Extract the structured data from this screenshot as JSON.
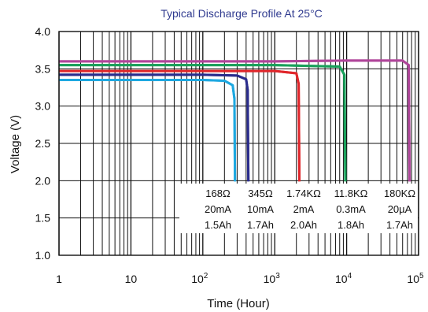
{
  "chart_data": {
    "type": "line",
    "title": "Typical Discharge Profile At 25°C",
    "xlabel": "Time (Hour)",
    "ylabel": "Voltage (V)",
    "x_scale": "log",
    "xlim": [
      1,
      100000
    ],
    "ylim": [
      1.0,
      4.0
    ],
    "x_ticks": [
      {
        "value": 1,
        "base": "1",
        "exp": ""
      },
      {
        "value": 10,
        "base": "10",
        "exp": ""
      },
      {
        "value": 100,
        "base": "10",
        "exp": "2"
      },
      {
        "value": 1000,
        "base": "10",
        "exp": "3"
      },
      {
        "value": 10000,
        "base": "10",
        "exp": "4"
      },
      {
        "value": 100000,
        "base": "10",
        "exp": "5"
      }
    ],
    "y_ticks": [
      "1.0",
      "1.5",
      "2.0",
      "2.5",
      "3.0",
      "3.5",
      "4.0"
    ],
    "grid": true,
    "series": [
      {
        "color": "#1ea8e0",
        "x": [
          1,
          10,
          100,
          200,
          260,
          275,
          280
        ],
        "y": [
          3.35,
          3.35,
          3.35,
          3.34,
          3.28,
          3.1,
          1.99
        ]
      },
      {
        "color": "#2a2c8c",
        "x": [
          1,
          10,
          100,
          300,
          400,
          420,
          430
        ],
        "y": [
          3.42,
          3.42,
          3.42,
          3.41,
          3.36,
          3.22,
          1.99
        ]
      },
      {
        "color": "#e0262b",
        "x": [
          1,
          10,
          100,
          1000,
          2000,
          2150,
          2200
        ],
        "y": [
          3.47,
          3.47,
          3.47,
          3.47,
          3.44,
          3.3,
          1.99
        ]
      },
      {
        "color": "#19a05a",
        "x": [
          1,
          10,
          100,
          1000,
          8000,
          9300,
          9600
        ],
        "y": [
          3.55,
          3.55,
          3.55,
          3.55,
          3.53,
          3.42,
          1.99
        ]
      },
      {
        "color": "#b0459a",
        "x": [
          1,
          10,
          100,
          1000,
          10000,
          60000,
          73000,
          75000
        ],
        "y": [
          3.6,
          3.6,
          3.6,
          3.6,
          3.61,
          3.61,
          3.55,
          1.99
        ]
      }
    ],
    "annotations": [
      {
        "lines": [
          "168Ω",
          "20mA",
          "1.5Ah"
        ]
      },
      {
        "lines": [
          "345Ω",
          "10mA",
          "1.7Ah"
        ]
      },
      {
        "lines": [
          "1.74KΩ",
          "2mA",
          "2.0Ah"
        ]
      },
      {
        "lines": [
          "11.8KΩ",
          "0.3mA",
          "1.8Ah"
        ]
      },
      {
        "lines": [
          "180KΩ",
          "20µA",
          "1.7Ah"
        ]
      }
    ]
  }
}
